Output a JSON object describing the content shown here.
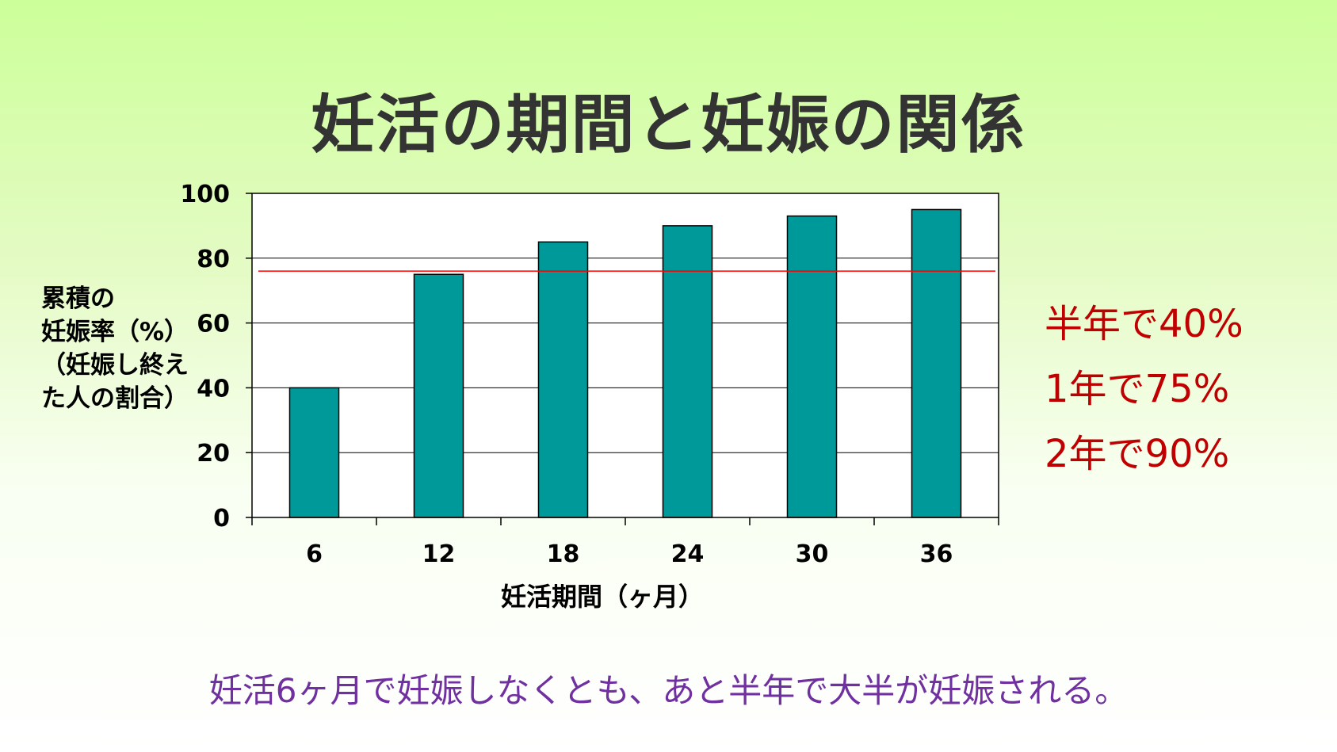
{
  "chart_data": {
    "type": "bar",
    "title": "妊活の期間と妊娠の関係",
    "categories": [
      "6",
      "12",
      "18",
      "24",
      "30",
      "36"
    ],
    "values": [
      40,
      75,
      85,
      90,
      93,
      95
    ],
    "ylim": [
      0,
      100
    ],
    "yticks": [
      "0",
      "20",
      "40",
      "60",
      "80",
      "100"
    ],
    "xlabel": "妊活期間（ヶ月）",
    "ylabel_lines": [
      "累積の",
      "妊娠率（%）",
      "（妊娠し終え",
      "た人の割合）"
    ],
    "grid": true,
    "reference_line": 76,
    "colors": {
      "bar": "#009999",
      "reference_line": "#ff0000"
    }
  },
  "annotations": [
    "半年で40%",
    "1年で75%",
    "2年で90%"
  ],
  "footnote": "妊活6ヶ月で妊娠しなくとも、あと半年で大半が妊娠される。",
  "colors": {
    "annotation": "#c00000",
    "footnote": "#7030a0"
  }
}
